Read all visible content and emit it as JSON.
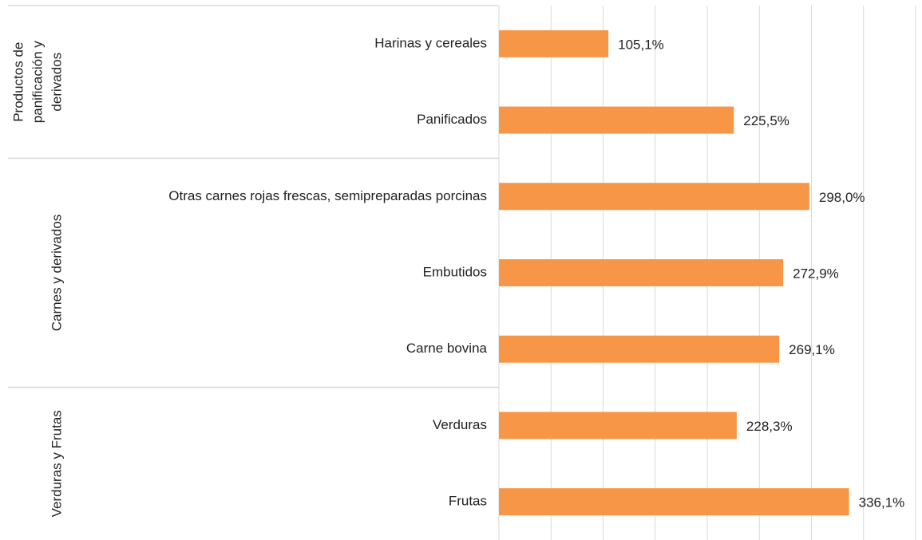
{
  "chart_data": {
    "type": "grouped-hbar",
    "color": "#f79646",
    "xlim": [
      0,
      400
    ],
    "xticks": [
      0,
      50,
      100,
      150,
      200,
      250,
      300,
      350,
      400
    ],
    "grid": true,
    "groups": [
      {
        "name": [
          "Productos de",
          "panificación y",
          "derivados"
        ],
        "categories": [
          "Harinas y cereales",
          "Panificados"
        ],
        "values": [
          105.1,
          225.5
        ],
        "value_labels": [
          "105,1%",
          "225,5%"
        ]
      },
      {
        "name": [
          "Carnes y derivados"
        ],
        "categories": [
          "Otras carnes rojas frescas, semipreparadas porcinas",
          "Embutidos",
          "Carne bovina"
        ],
        "values": [
          298.0,
          272.9,
          269.1
        ],
        "value_labels": [
          "298,0%",
          "272,9%",
          "269,1%"
        ]
      },
      {
        "name": [
          "Verduras y Frutas"
        ],
        "categories": [
          "Verduras",
          "Frutas"
        ],
        "values": [
          228.3,
          336.1
        ],
        "value_labels": [
          "228,3%",
          "336,1%"
        ]
      }
    ]
  }
}
